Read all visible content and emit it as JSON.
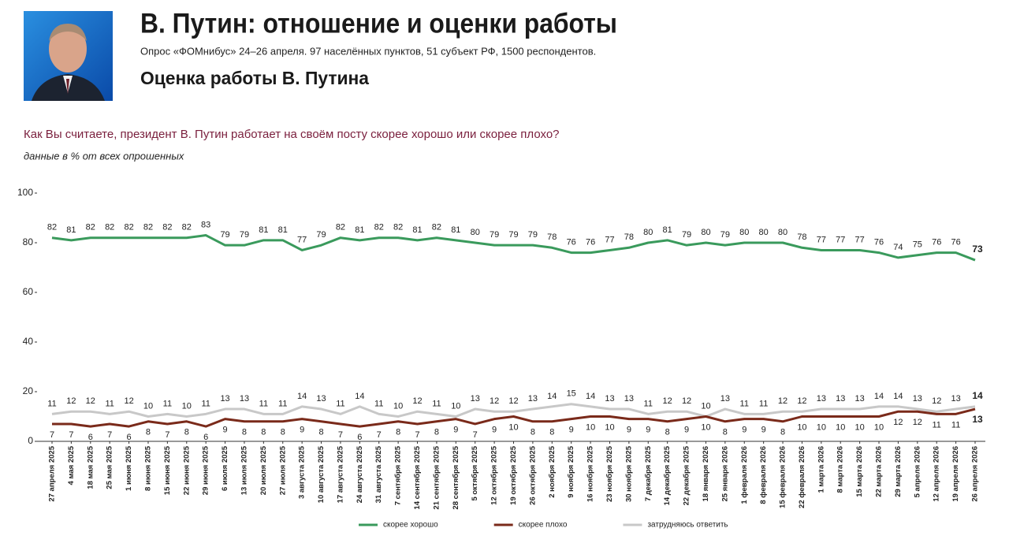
{
  "header": {
    "title": "В. Путин: отношение и оценки работы",
    "subtitle": "Опрос «ФОМнибус» 24–26 апреля. 97 населённых пунктов, 51 субъект РФ, 1500 респондентов.",
    "section": "Оценка работы В. Путина"
  },
  "chart_data": {
    "type": "line",
    "title": "Как Вы считаете, президент В. Путин работает на своём посту скорее хорошо или скорее плохо?",
    "subtitle": "данные в % от всех опрошенных",
    "categories": [
      "27 апреля 2025",
      "4 мая 2025",
      "18 мая 2025",
      "25 мая 2025",
      "1 июня 2025",
      "8 июня 2025",
      "15 июня 2025",
      "22 июня 2025",
      "29 июня 2025",
      "6 июля 2025",
      "13 июля 2025",
      "20 июля 2025",
      "27 июля 2025",
      "3 августа 2025",
      "10 августа 2025",
      "17 августа 2025",
      "24 августа 2025",
      "31 августа 2025",
      "7 сентября 2025",
      "14 сентября 2025",
      "21 сентября 2025",
      "28 сентября 2025",
      "5 октября 2025",
      "12 октября 2025",
      "19 октября 2025",
      "26 октября 2025",
      "2 ноября 2025",
      "9 ноября 2025",
      "16 ноября 2025",
      "23 ноября 2025",
      "30 ноября 2025",
      "7 декабря 2025",
      "14 декабря 2025",
      "22 декабря 2025",
      "18 января 2026",
      "25 января 2026",
      "1 февраля 2026",
      "8 февраля 2026",
      "15 февраля 2026",
      "22 февраля 2026",
      "1 марта 2026",
      "8 марта 2026",
      "15 марта 2026",
      "22 марта 2026",
      "29 марта 2026",
      "5 апреля 2026",
      "12 апреля 2026",
      "19 апреля 2026",
      "26 апреля 2026"
    ],
    "series": [
      {
        "name": "скорее хорошо",
        "color": "#3a9a5c",
        "values": [
          82,
          81,
          82,
          82,
          82,
          82,
          82,
          82,
          83,
          79,
          79,
          81,
          81,
          77,
          79,
          82,
          81,
          82,
          82,
          81,
          82,
          81,
          80,
          79,
          79,
          79,
          78,
          76,
          76,
          77,
          78,
          80,
          81,
          79,
          80,
          79,
          80,
          80,
          80,
          78,
          77,
          77,
          77,
          76,
          74,
          75,
          76,
          76,
          73
        ]
      },
      {
        "name": "скорее плохо",
        "color": "#7a2a1a",
        "values": [
          7,
          7,
          6,
          7,
          6,
          8,
          7,
          8,
          6,
          9,
          8,
          8,
          8,
          9,
          8,
          7,
          6,
          7,
          8,
          7,
          8,
          9,
          7,
          9,
          10,
          8,
          8,
          9,
          10,
          10,
          9,
          9,
          8,
          9,
          10,
          8,
          9,
          9,
          8,
          10,
          10,
          10,
          10,
          10,
          12,
          12,
          11,
          11,
          13
        ]
      },
      {
        "name": "затрудняюсь ответить",
        "color": "#c8c8c8",
        "values": [
          11,
          12,
          12,
          11,
          12,
          10,
          11,
          10,
          11,
          13,
          13,
          11,
          11,
          14,
          13,
          11,
          14,
          11,
          10,
          12,
          11,
          10,
          13,
          12,
          12,
          13,
          14,
          15,
          14,
          13,
          13,
          11,
          12,
          12,
          10,
          13,
          11,
          11,
          12,
          12,
          13,
          13,
          13,
          14,
          14,
          13,
          12,
          13,
          14
        ]
      }
    ],
    "ylim": [
      0,
      100
    ],
    "yticks": [
      0,
      20,
      40,
      60,
      80,
      100
    ],
    "grid": false,
    "legend": "bottom"
  }
}
